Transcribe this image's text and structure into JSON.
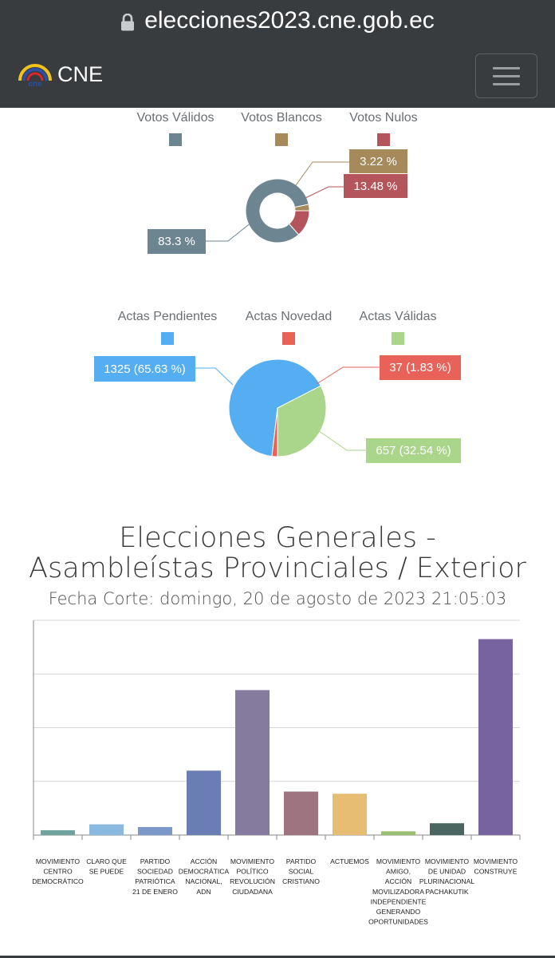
{
  "browser": {
    "url": "elecciones2023.cne.gob.ec"
  },
  "navbar": {
    "brand": "CNE",
    "logo_text": "cne"
  },
  "votes_chart": {
    "type": "pie",
    "legend": [
      {
        "label": "Votos Válidos",
        "color": "#6d8591"
      },
      {
        "label": "Votos Blancos",
        "color": "#a68a5b"
      },
      {
        "label": "Votos Nulos",
        "color": "#b3555a"
      }
    ],
    "slices": [
      {
        "name": "Votos Válidos",
        "value": 83.3,
        "label": "83.3 %",
        "color": "#6d8591"
      },
      {
        "name": "Votos Blancos",
        "value": 3.22,
        "label": "3.22 %",
        "color": "#a68a5b"
      },
      {
        "name": "Votos Nulos",
        "value": 13.48,
        "label": "13.48 %",
        "color": "#b3555a"
      }
    ]
  },
  "actas_chart": {
    "type": "pie",
    "legend": [
      {
        "label": "Actas Pendientes",
        "color": "#55aef2"
      },
      {
        "label": "Actas Novedad",
        "color": "#e8625a"
      },
      {
        "label": "Actas Válidas",
        "color": "#a9d68a"
      }
    ],
    "slices": [
      {
        "name": "Actas Pendientes",
        "value": 1325,
        "label": "1325 (65.63 %)",
        "color": "#55aef2"
      },
      {
        "name": "Actas Novedad",
        "value": 37,
        "label": "37 (1.83 %)",
        "color": "#e8625a"
      },
      {
        "name": "Actas Válidas",
        "value": 657,
        "label": "657 (32.54 %)",
        "color": "#a9d68a"
      }
    ]
  },
  "chart_data": {
    "type": "bar",
    "title": "Elecciones Generales - Asambleístas Provinciales / Exterior",
    "subtitle": "Fecha Corte: domingo, 20 de agosto de 2023 21:05:03",
    "ylim": [
      0,
      4
    ],
    "grid": true,
    "categories": [
      "MOVIMIENTO CENTRO DEMOCRÁTICO",
      "CLARO QUE SE PUEDE",
      "PARTIDO SOCIEDAD PATRIÓTICA 21 DE ENERO",
      "ACCIÓN DEMOCRÁTICA NACIONAL, ADN",
      "MOVIMIENTO POLÍTICO REVOLUCIÓN CIUDADANA",
      "PARTIDO SOCIAL CRISTIANO",
      "ACTUEMOS",
      "MOVIMIENTO AMIGO, ACCIÓN MOVILIZADORA INDEPENDIENTE GENERANDO OPORTUNIDADES",
      "MOVIMIENTO DE UNIDAD PLURINACIONAL PACHAKUTIK",
      "MOVIMIENTO CONSTRUYE"
    ],
    "tick_lines": [
      [
        "MOVIMIENTO",
        "CENTRO",
        "DEMOCRÁTICO"
      ],
      [
        "CLARO QUE",
        "SE PUEDE"
      ],
      [
        "PARTIDO",
        "SOCIEDAD",
        "PATRIÓTICA",
        "21 DE ENERO"
      ],
      [
        "ACCIÓN",
        "DEMOCRÁTICA",
        "NACIONAL,",
        "ADN"
      ],
      [
        "MOVIMIENTO",
        "POLÍTICO",
        "REVOLUCIÓN",
        "CIUDADANA"
      ],
      [
        "PARTIDO",
        "SOCIAL",
        "CRISTIANO"
      ],
      [
        "ACTUEMOS"
      ],
      [
        "MOVIMIENTO",
        "AMIGO,",
        "ACCIÓN",
        "MOVILIZADORA",
        "INDEPENDIENTE",
        "GENERANDO",
        "OPORTUNIDADES"
      ],
      [
        "MOVIMIENTO",
        "DE UNIDAD",
        "PLURINACIONAL",
        "PACHAKUTIK"
      ],
      [
        "MOVIMIENTO",
        "CONSTRUYE"
      ]
    ],
    "values": [
      0.09,
      0.2,
      0.15,
      1.2,
      2.7,
      0.81,
      0.77,
      0.07,
      0.22,
      3.65
    ],
    "colors": [
      "#6fa39e",
      "#8ab9df",
      "#7b98c8",
      "#6b7db5",
      "#857b9f",
      "#9e7480",
      "#e6bd73",
      "#9abe72",
      "#4b6561",
      "#7564a0"
    ]
  }
}
